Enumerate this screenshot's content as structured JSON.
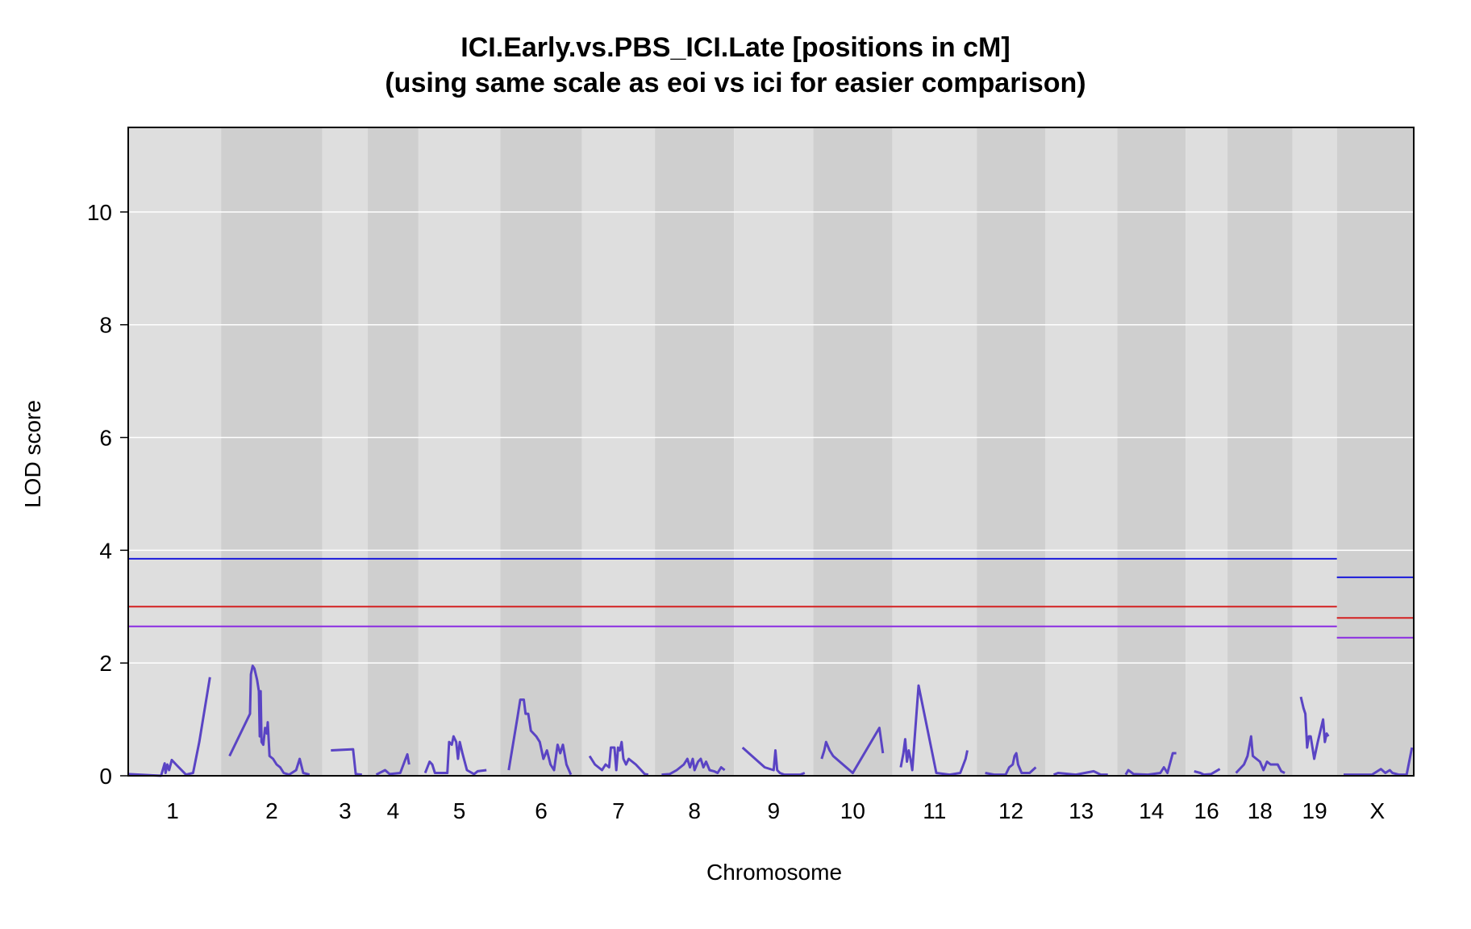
{
  "chart_data": {
    "type": "line",
    "title": "ICI.Early.vs.PBS_ICI.Late [positions in cM]",
    "subtitle": "(using same scale as eoi vs ici for easier comparison)",
    "xlabel": "Chromosome",
    "ylabel": "LOD score",
    "ylim": [
      0,
      11.5
    ],
    "yticks": [
      0,
      2,
      4,
      6,
      8,
      10
    ],
    "grid": true,
    "legend": "none",
    "colors": {
      "lod_curve": "#5a44c4",
      "threshold_high": "#1a1adb",
      "threshold_mid": "#d42020",
      "threshold_low": "#8a2be2",
      "band_light": "#dedede",
      "band_dark": "#cfcfcf",
      "grid": "#ffffff"
    },
    "chromosomes": [
      {
        "label": "1",
        "show_label": true,
        "length": 100,
        "points": [
          [
            0,
            0.03
          ],
          [
            37,
            0
          ],
          [
            41,
            0.22
          ],
          [
            42,
            0.05
          ],
          [
            44,
            0.2
          ],
          [
            46,
            0.1
          ],
          [
            49,
            0.28
          ],
          [
            55,
            0.18
          ],
          [
            65,
            0.02
          ],
          [
            73,
            0.05
          ],
          [
            80,
            0.6
          ],
          [
            92,
            1.75
          ]
        ]
      },
      {
        "label": "2",
        "show_label": true,
        "length": 105,
        "points": [
          [
            5,
            0.35
          ],
          [
            28,
            1.1
          ],
          [
            29,
            1.8
          ],
          [
            31,
            1.95
          ],
          [
            33,
            1.9
          ],
          [
            36,
            1.7
          ],
          [
            38,
            1.5
          ],
          [
            39,
            0.7
          ],
          [
            40,
            1.5
          ],
          [
            41,
            0.6
          ],
          [
            43,
            0.55
          ],
          [
            45,
            0.85
          ],
          [
            47,
            0.75
          ],
          [
            48,
            0.95
          ],
          [
            50,
            0.35
          ],
          [
            54,
            0.3
          ],
          [
            58,
            0.2
          ],
          [
            62,
            0.15
          ],
          [
            66,
            0.05
          ],
          [
            72,
            0.02
          ],
          [
            80,
            0.1
          ],
          [
            84,
            0.3
          ],
          [
            88,
            0.05
          ],
          [
            95,
            0.02
          ]
        ]
      },
      {
        "label": "3",
        "show_label": true,
        "length": 42,
        "points": [
          [
            5,
            0.45
          ],
          [
            30,
            0.47
          ],
          [
            33,
            0.03
          ],
          [
            40,
            0.02
          ]
        ]
      },
      {
        "label": "4",
        "show_label": true,
        "length": 48,
        "points": [
          [
            5,
            0.02
          ],
          [
            15,
            0.1
          ],
          [
            20,
            0.03
          ],
          [
            32,
            0.05
          ],
          [
            38,
            0.3
          ],
          [
            40,
            0.38
          ],
          [
            42,
            0.2
          ]
        ]
      },
      {
        "label": "5",
        "show_label": true,
        "length": 83,
        "points": [
          [
            3,
            0.05
          ],
          [
            8,
            0.25
          ],
          [
            11,
            0.2
          ],
          [
            14,
            0.05
          ],
          [
            18,
            0.05
          ],
          [
            28,
            0.05
          ],
          [
            30,
            0.6
          ],
          [
            33,
            0.55
          ],
          [
            35,
            0.7
          ],
          [
            38,
            0.6
          ],
          [
            40,
            0.3
          ],
          [
            42,
            0.6
          ],
          [
            45,
            0.4
          ],
          [
            50,
            0.1
          ],
          [
            58,
            0.03
          ],
          [
            62,
            0.08
          ],
          [
            72,
            0.1
          ]
        ]
      },
      {
        "label": "6",
        "show_label": true,
        "length": 83,
        "points": [
          [
            5,
            0.1
          ],
          [
            15,
            1.05
          ],
          [
            18,
            1.35
          ],
          [
            22,
            1.35
          ],
          [
            24,
            1.1
          ],
          [
            27,
            1.1
          ],
          [
            30,
            0.8
          ],
          [
            33,
            0.75
          ],
          [
            36,
            0.7
          ],
          [
            40,
            0.6
          ],
          [
            44,
            0.3
          ],
          [
            48,
            0.45
          ],
          [
            52,
            0.2
          ],
          [
            56,
            0.1
          ],
          [
            60,
            0.55
          ],
          [
            63,
            0.4
          ],
          [
            66,
            0.55
          ],
          [
            70,
            0.2
          ],
          [
            75,
            0.02
          ]
        ]
      },
      {
        "label": "7",
        "show_label": true,
        "length": 73,
        "points": [
          [
            4,
            0.35
          ],
          [
            10,
            0.2
          ],
          [
            14,
            0.15
          ],
          [
            18,
            0.1
          ],
          [
            22,
            0.2
          ],
          [
            26,
            0.15
          ],
          [
            28,
            0.5
          ],
          [
            32,
            0.5
          ],
          [
            34,
            0.1
          ],
          [
            36,
            0.5
          ],
          [
            38,
            0.45
          ],
          [
            40,
            0.6
          ],
          [
            42,
            0.3
          ],
          [
            45,
            0.2
          ],
          [
            48,
            0.3
          ],
          [
            52,
            0.25
          ],
          [
            56,
            0.2
          ],
          [
            62,
            0.1
          ],
          [
            66,
            0.03
          ],
          [
            70,
            0.02
          ]
        ]
      },
      {
        "label": "8",
        "show_label": true,
        "length": 80,
        "points": [
          [
            3,
            0.02
          ],
          [
            12,
            0.03
          ],
          [
            20,
            0.1
          ],
          [
            28,
            0.2
          ],
          [
            32,
            0.3
          ],
          [
            35,
            0.15
          ],
          [
            38,
            0.3
          ],
          [
            40,
            0.1
          ],
          [
            44,
            0.25
          ],
          [
            47,
            0.3
          ],
          [
            50,
            0.15
          ],
          [
            53,
            0.25
          ],
          [
            57,
            0.1
          ],
          [
            62,
            0.08
          ],
          [
            66,
            0.05
          ],
          [
            70,
            0.15
          ],
          [
            74,
            0.1
          ]
        ]
      },
      {
        "label": "9",
        "show_label": true,
        "length": 80,
        "points": [
          [
            5,
            0.5
          ],
          [
            30,
            0.15
          ],
          [
            40,
            0.1
          ],
          [
            42,
            0.45
          ],
          [
            44,
            0.1
          ],
          [
            47,
            0.05
          ],
          [
            52,
            0.02
          ],
          [
            60,
            0.02
          ],
          [
            70,
            0.02
          ],
          [
            75,
            0.05
          ]
        ]
      },
      {
        "label": "10",
        "show_label": true,
        "length": 80,
        "points": [
          [
            5,
            0.3
          ],
          [
            8,
            0.45
          ],
          [
            10,
            0.6
          ],
          [
            14,
            0.45
          ],
          [
            18,
            0.35
          ],
          [
            40,
            0.05
          ],
          [
            70,
            0.85
          ],
          [
            74,
            0.4
          ]
        ]
      },
      {
        "label": "11",
        "show_label": true,
        "length": 86,
        "points": [
          [
            5,
            0.15
          ],
          [
            8,
            0.4
          ],
          [
            10,
            0.65
          ],
          [
            12,
            0.25
          ],
          [
            14,
            0.45
          ],
          [
            16,
            0.3
          ],
          [
            18,
            0.1
          ],
          [
            25,
            1.6
          ],
          [
            45,
            0.05
          ],
          [
            60,
            0.02
          ],
          [
            72,
            0.05
          ],
          [
            78,
            0.3
          ],
          [
            80,
            0.45
          ]
        ]
      },
      {
        "label": "12",
        "show_label": true,
        "length": 68,
        "points": [
          [
            5,
            0.05
          ],
          [
            15,
            0.02
          ],
          [
            28,
            0.02
          ],
          [
            32,
            0.15
          ],
          [
            36,
            0.2
          ],
          [
            38,
            0.35
          ],
          [
            40,
            0.4
          ],
          [
            42,
            0.2
          ],
          [
            46,
            0.05
          ],
          [
            55,
            0.05
          ],
          [
            62,
            0.15
          ]
        ]
      },
      {
        "label": "13",
        "show_label": true,
        "length": 72,
        "points": [
          [
            5,
            0.02
          ],
          [
            10,
            0.05
          ],
          [
            30,
            0.02
          ],
          [
            50,
            0.08
          ],
          [
            58,
            0.02
          ],
          [
            66,
            0.02
          ]
        ]
      },
      {
        "label": "14",
        "show_label": true,
        "length": 68,
        "points": [
          [
            5,
            0.02
          ],
          [
            8,
            0.1
          ],
          [
            14,
            0.03
          ],
          [
            30,
            0.02
          ],
          [
            44,
            0.05
          ],
          [
            48,
            0.15
          ],
          [
            52,
            0.05
          ],
          [
            58,
            0.4
          ],
          [
            62,
            0.4
          ]
        ]
      },
      {
        "label": "16",
        "show_label": true,
        "length": 38,
        "points": [
          [
            5,
            0.08
          ],
          [
            12,
            0.05
          ],
          [
            16,
            0.02
          ],
          [
            24,
            0.03
          ],
          [
            34,
            0.12
          ]
        ]
      },
      {
        "label": "18",
        "show_label": true,
        "length": 64,
        "points": [
          [
            5,
            0.05
          ],
          [
            14,
            0.2
          ],
          [
            18,
            0.35
          ],
          [
            22,
            0.7
          ],
          [
            24,
            0.35
          ],
          [
            28,
            0.3
          ],
          [
            32,
            0.25
          ],
          [
            36,
            0.1
          ],
          [
            40,
            0.25
          ],
          [
            44,
            0.2
          ],
          [
            48,
            0.2
          ],
          [
            52,
            0.2
          ],
          [
            56,
            0.08
          ],
          [
            60,
            0.05
          ]
        ]
      },
      {
        "label": "19",
        "show_label": true,
        "length": 41,
        "points": [
          [
            5,
            1.4
          ],
          [
            8,
            1.2
          ],
          [
            10,
            1.1
          ],
          [
            12,
            0.5
          ],
          [
            14,
            0.7
          ],
          [
            16,
            0.7
          ],
          [
            18,
            0.5
          ],
          [
            20,
            0.3
          ],
          [
            24,
            0.6
          ],
          [
            30,
            1.0
          ],
          [
            32,
            0.6
          ],
          [
            34,
            0.75
          ],
          [
            36,
            0.7
          ]
        ]
      },
      {
        "label": "X",
        "show_label": true,
        "length": 82,
        "points": [
          [
            3,
            0.02
          ],
          [
            20,
            0.02
          ],
          [
            35,
            0.02
          ],
          [
            45,
            0.12
          ],
          [
            50,
            0.05
          ],
          [
            55,
            0.1
          ],
          [
            58,
            0.05
          ],
          [
            65,
            0.02
          ],
          [
            74,
            0.02
          ],
          [
            80,
            0.5
          ]
        ]
      }
    ],
    "thresholds": {
      "autosomes": [
        {
          "color_key": "threshold_high",
          "value": 3.85
        },
        {
          "color_key": "threshold_mid",
          "value": 3.0
        },
        {
          "color_key": "threshold_low",
          "value": 2.65
        }
      ],
      "x": [
        {
          "color_key": "threshold_high",
          "value": 3.52
        },
        {
          "color_key": "threshold_mid",
          "value": 2.8
        },
        {
          "color_key": "threshold_low",
          "value": 2.45
        }
      ]
    }
  }
}
